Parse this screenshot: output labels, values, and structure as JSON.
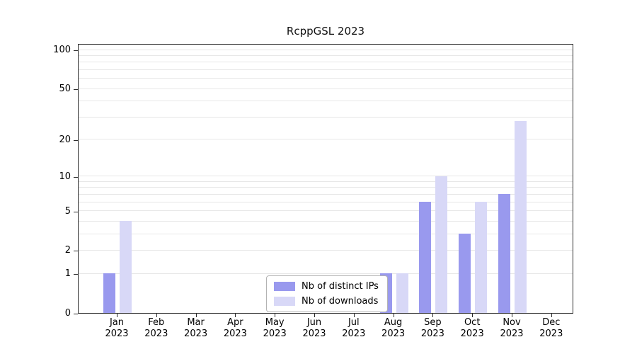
{
  "chart_data": {
    "type": "bar",
    "title": "RcppGSL 2023",
    "x_categories_line1": [
      "Jan",
      "Feb",
      "Mar",
      "Apr",
      "May",
      "Jun",
      "Jul",
      "Aug",
      "Sep",
      "Oct",
      "Nov",
      "Dec"
    ],
    "x_categories_line2": "2023",
    "series": [
      {
        "name": "Nb of distinct IPs",
        "color": "#9999ee",
        "values": [
          1,
          0,
          0,
          0,
          0,
          0,
          0,
          1,
          6,
          3,
          7,
          0
        ]
      },
      {
        "name": "Nb of downloads",
        "color": "#d8d8f7",
        "values": [
          4,
          0,
          0,
          0,
          0,
          0,
          0,
          1,
          10,
          6,
          28,
          0
        ]
      }
    ],
    "y_axis": {
      "scale": "log1p",
      "ticks": [
        0,
        1,
        2,
        5,
        10,
        20,
        50,
        100
      ],
      "max": 112,
      "gridlines": [
        1,
        2,
        3,
        4,
        5,
        6,
        7,
        8,
        9,
        10,
        20,
        30,
        40,
        50,
        60,
        70,
        80,
        90,
        100
      ],
      "grid_color": "#e7e7e7"
    },
    "legend": {
      "position": "bottom-center-inside",
      "items": [
        {
          "label": "Nb of distinct IPs",
          "color": "#9999ee"
        },
        {
          "label": "Nb of downloads",
          "color": "#d8d8f7"
        }
      ]
    }
  }
}
